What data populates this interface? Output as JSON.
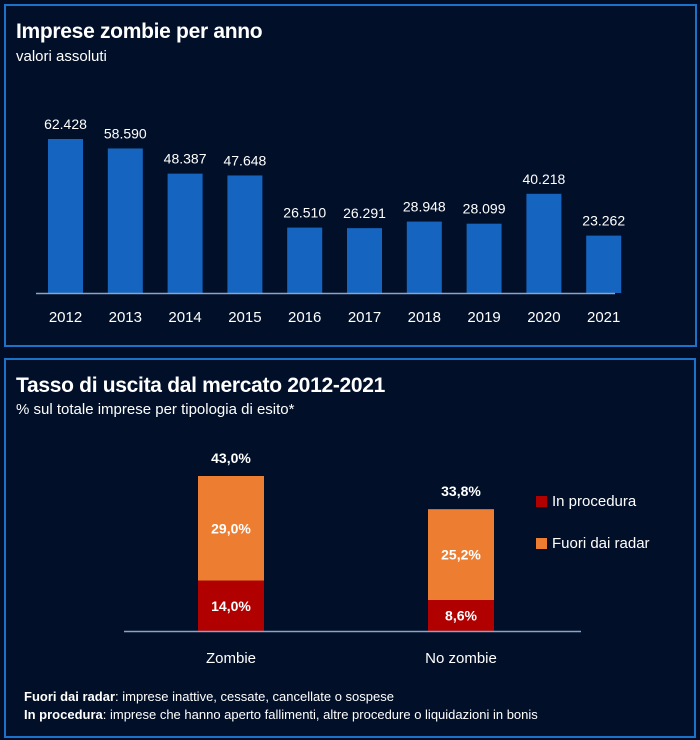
{
  "chart_data": [
    {
      "type": "bar",
      "title": "Imprese zombie per anno",
      "subtitle": "valori assoluti",
      "xlabel": "",
      "ylabel": "",
      "categories": [
        "2012",
        "2013",
        "2014",
        "2015",
        "2016",
        "2017",
        "2018",
        "2019",
        "2020",
        "2021"
      ],
      "values": [
        62428,
        58590,
        48387,
        47648,
        26510,
        26291,
        28948,
        28099,
        40218,
        23262
      ],
      "value_labels": [
        "62.428",
        "58.590",
        "48.387",
        "47.648",
        "26.510",
        "26.291",
        "28.948",
        "28.099",
        "40.218",
        "23.262"
      ],
      "ylim": [
        0,
        66000
      ],
      "grid": false,
      "bar_color": "#1565c0"
    },
    {
      "type": "bar",
      "stacked": true,
      "title": "Tasso di uscita dal mercato 2012-2021",
      "subtitle": "% sul totale imprese per tipologia di esito*",
      "categories": [
        "Zombie",
        "No zombie"
      ],
      "series": [
        {
          "name": "In procedura",
          "values": [
            14.0,
            8.6
          ],
          "labels": [
            "14,0%",
            "8,6%"
          ],
          "color": "#b00000"
        },
        {
          "name": "Fuori dai radar",
          "values": [
            29.0,
            25.2
          ],
          "labels": [
            "29,0%",
            "25,2%"
          ],
          "color": "#ed7d31"
        }
      ],
      "totals": [
        43.0,
        33.8
      ],
      "total_labels": [
        "43,0%",
        "33,8%"
      ],
      "ylim": [
        0,
        50
      ],
      "legend": "right",
      "grid": false
    }
  ],
  "notes": [
    {
      "term": "Fuori dai radar",
      "text": ": imprese  inattive, cessate, cancellate o sospese"
    },
    {
      "term": "In procedura",
      "text": ": imprese che hanno aperto fallimenti, altre procedure o liquidazioni in bonis"
    }
  ]
}
